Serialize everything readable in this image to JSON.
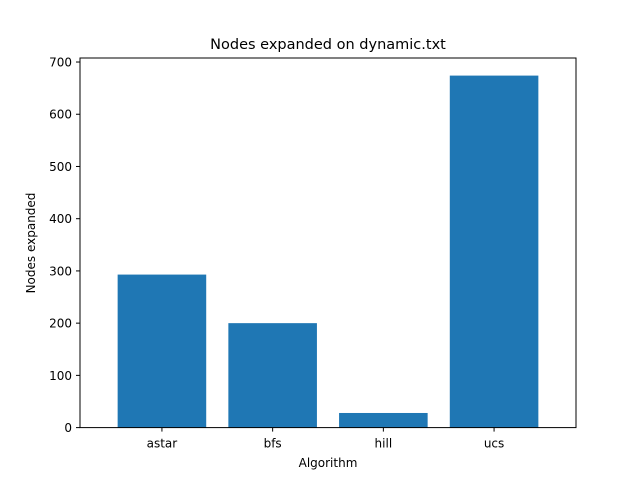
{
  "chart_data": {
    "type": "bar",
    "title": "Nodes expanded on dynamic.txt",
    "xlabel": "Algorithm",
    "ylabel": "Nodes expanded",
    "categories": [
      "astar",
      "bfs",
      "hill",
      "ucs"
    ],
    "values": [
      293,
      200,
      28,
      674
    ],
    "ylim": [
      0,
      707.7
    ],
    "yticks": [
      0,
      100,
      200,
      300,
      400,
      500,
      600,
      700
    ],
    "bar_color": "#1f77b4",
    "grid": false,
    "legend": "none"
  }
}
